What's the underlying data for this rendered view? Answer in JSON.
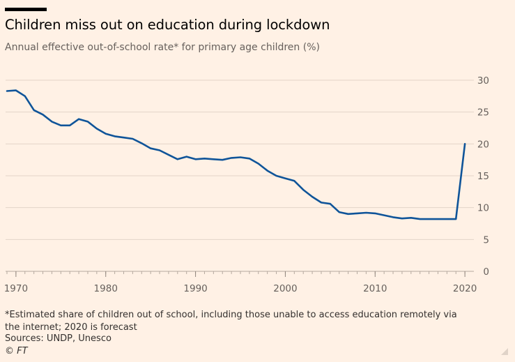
{
  "header": {
    "title": "Children miss out on education during lockdown",
    "subtitle": "Annual effective out-of-school rate* for primary age children (%)"
  },
  "footer": {
    "footnote": "*Estimated share of children out of school, including those unable to access education remotely via the internet; 2020 is forecast",
    "source": "Sources: UNDP, Unesco",
    "credit": "© FT"
  },
  "colors": {
    "background": "#fff1e5",
    "line": "#0f5499",
    "grid": "#e3d4c8",
    "text": "#33302e"
  },
  "chart_data": {
    "type": "line",
    "title": "Children miss out on education during lockdown",
    "subtitle": "Annual effective out-of-school rate* for primary age children (%)",
    "xlabel": "",
    "ylabel": "%",
    "xlim": [
      1969,
      2021
    ],
    "ylim": [
      0,
      30
    ],
    "x_ticks": [
      1970,
      1980,
      1990,
      2000,
      2010,
      2020
    ],
    "y_ticks": [
      0,
      5,
      10,
      15,
      20,
      25,
      30
    ],
    "grid": true,
    "y_axis_side": "right",
    "series": [
      {
        "name": "Out-of-school rate",
        "x": [
          1969,
          1970,
          1971,
          1972,
          1973,
          1974,
          1975,
          1976,
          1977,
          1978,
          1979,
          1980,
          1981,
          1982,
          1983,
          1984,
          1985,
          1986,
          1987,
          1988,
          1989,
          1990,
          1991,
          1992,
          1993,
          1994,
          1995,
          1996,
          1997,
          1998,
          1999,
          2000,
          2001,
          2002,
          2003,
          2004,
          2005,
          2006,
          2007,
          2008,
          2009,
          2010,
          2011,
          2012,
          2013,
          2014,
          2015,
          2016,
          2017,
          2018,
          2019,
          2020
        ],
        "values": [
          28.3,
          28.4,
          27.5,
          25.3,
          24.6,
          23.5,
          22.9,
          22.9,
          23.9,
          23.5,
          22.4,
          21.6,
          21.2,
          21.0,
          20.8,
          20.1,
          19.3,
          19.0,
          18.3,
          17.6,
          18.0,
          17.6,
          17.7,
          17.6,
          17.5,
          17.8,
          17.9,
          17.7,
          16.9,
          15.8,
          15.0,
          14.6,
          14.2,
          12.8,
          11.7,
          10.8,
          10.6,
          9.3,
          9.0,
          9.1,
          9.2,
          9.1,
          8.8,
          8.5,
          8.3,
          8.4,
          8.2,
          8.2,
          8.2,
          8.2,
          8.2,
          20.0
        ]
      }
    ]
  }
}
